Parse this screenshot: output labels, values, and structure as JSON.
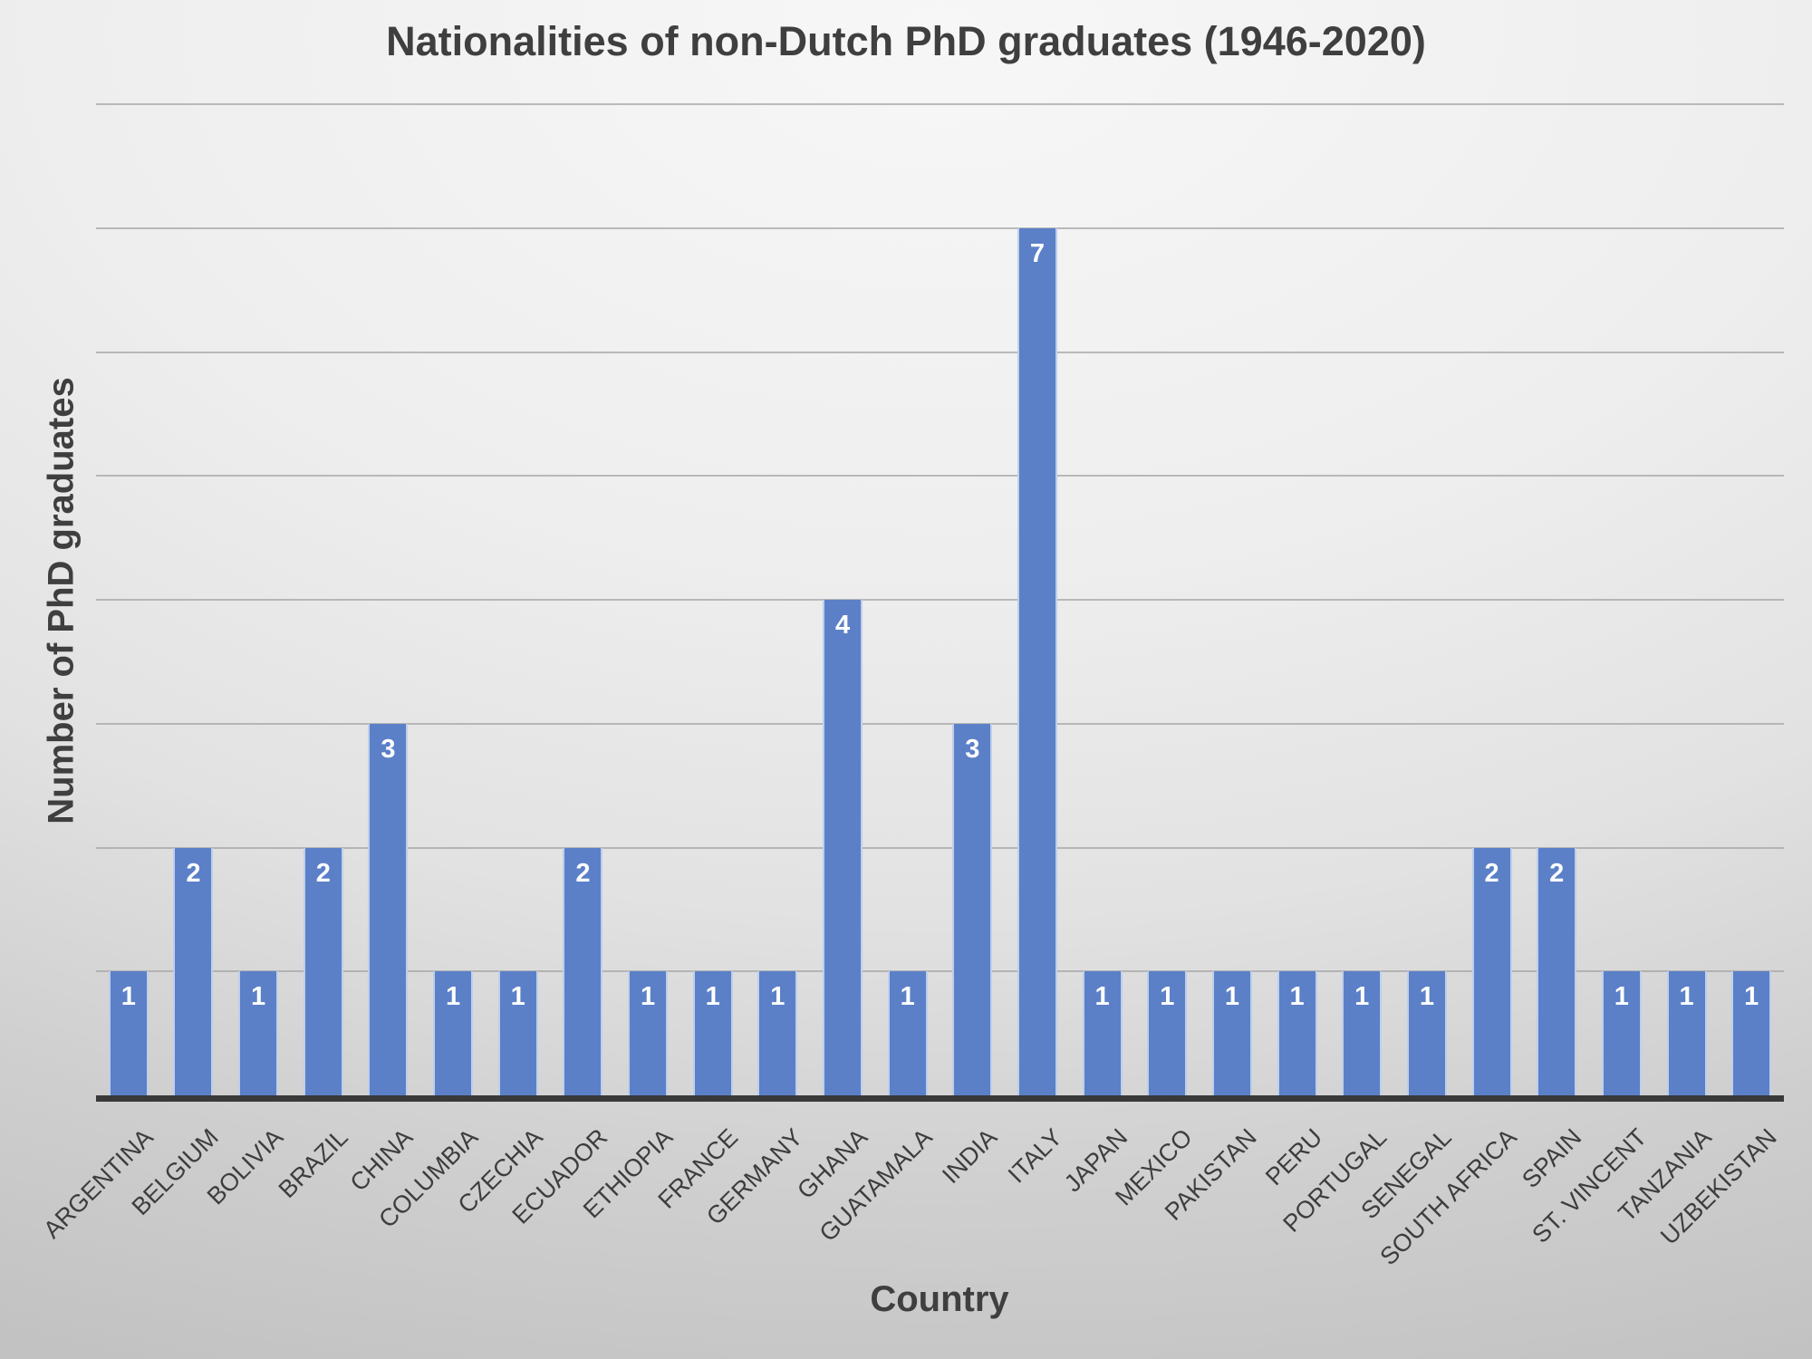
{
  "chart_data": {
    "type": "bar",
    "title": "Nationalities of non-Dutch PhD graduates (1946-2020)",
    "xlabel": "Country",
    "ylabel": "Number of PhD graduates",
    "categories": [
      "ARGENTINA",
      "BELGIUM",
      "BOLIVIA",
      "BRAZIL",
      "CHINA",
      "COLUMBIA",
      "CZECHIA",
      "ECUADOR",
      "ETHIOPIA",
      "FRANCE",
      "GERMANY",
      "GHANA",
      "GUATAMALA",
      "INDIA",
      "ITALY",
      "JAPAN",
      "MEXICO",
      "PAKISTAN",
      "PERU",
      "PORTUGAL",
      "SENEGAL",
      "SOUTH AFRICA",
      "SPAIN",
      "ST. VINCENT",
      "TANZANIA",
      "UZBEKISTAN"
    ],
    "values": [
      1,
      2,
      1,
      2,
      3,
      1,
      1,
      2,
      1,
      1,
      1,
      4,
      1,
      3,
      7,
      1,
      1,
      1,
      1,
      1,
      1,
      2,
      2,
      1,
      1,
      1
    ],
    "ylim": [
      0,
      8
    ],
    "gridline_step": 1,
    "grid": true,
    "legend": "none",
    "data_labels_position": "inside-end",
    "colors": {
      "bar": "#5B80C7",
      "bar_edge": "rgba(245,249,255,0.65)",
      "data_label": "#FFFFFF",
      "title_text": "#3F3F3F",
      "axis_label_text": "#3D3D3D",
      "gridline": "#A5A5A5",
      "axis_line": "#393939"
    }
  }
}
